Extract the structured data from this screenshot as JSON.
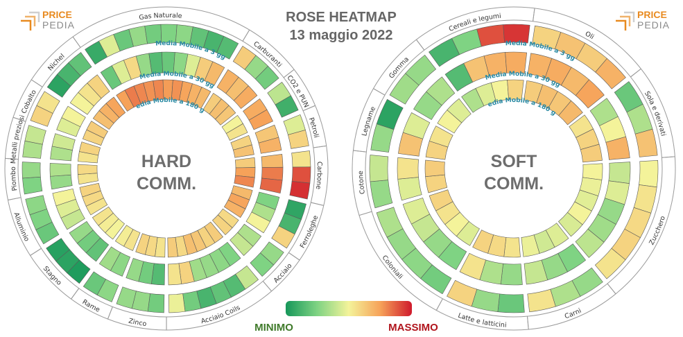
{
  "title_line1": "ROSE HEATMAP",
  "title_line2": "13 maggio 2022",
  "logo": {
    "price": "PRICE",
    "pedia": "PEDIA"
  },
  "legend": {
    "min_label": "MINIMO",
    "max_label": "MASSIMO",
    "colors": [
      "#17975a",
      "#7fd383",
      "#f4f39a",
      "#f6a259",
      "#cf1a2c"
    ]
  },
  "ring_labels": [
    "Media Mobile a 3 gg",
    "Media Mobile a 30 gg",
    "Media Mobile a 180 gg"
  ],
  "chart_data": [
    {
      "type": "heatmap",
      "name": "HARD COMM.",
      "center_line1": "HARD",
      "center_line2": "COMM.",
      "scale": "0 = minimo, 1 = massimo",
      "sectors": [
        {
          "label": "Gas Naturale",
          "v3": [
            0.08,
            0.45,
            0.2,
            0.3,
            0.22,
            0.25,
            0.28,
            0.18,
            0.12,
            0.15
          ],
          "v30": [
            0.2,
            0.45,
            0.58,
            0.3,
            0.15,
            0.2,
            0.28,
            0.45,
            0.62,
            0.68
          ],
          "v180": [
            0.75,
            0.82,
            0.8,
            0.78,
            0.8,
            0.76,
            0.78,
            0.74,
            0.7,
            0.68
          ]
        },
        {
          "label": "Carburanti",
          "v3": [
            0.62,
            0.3,
            0.22
          ],
          "v30": [
            0.7,
            0.66,
            0.72
          ],
          "v180": [
            0.62,
            0.66,
            0.64
          ]
        },
        {
          "label": "CO2 e PUN",
          "v3": [
            0.38,
            0.1
          ],
          "v30": [
            0.72,
            0.75
          ],
          "v180": [
            0.5,
            0.55
          ]
        },
        {
          "label": "Petroli",
          "v3": [
            0.45,
            0.6
          ],
          "v30": [
            0.64,
            0.7
          ],
          "v180": [
            0.6,
            0.65
          ]
        },
        {
          "label": "Carbone",
          "v3": [
            0.55,
            0.9,
            0.96
          ],
          "v30": [
            0.68,
            0.82,
            0.86
          ],
          "v180": [
            0.62,
            0.75,
            0.8
          ]
        },
        {
          "label": "Ferroleghe",
          "v3": [
            0.06,
            0.12,
            0.6
          ],
          "v30": [
            0.25,
            0.35,
            0.5
          ],
          "v180": [
            0.68,
            0.74,
            0.7
          ]
        },
        {
          "label": "Acciaio",
          "v3": [
            0.3,
            0.25
          ],
          "v30": [
            0.35,
            0.4
          ],
          "v180": [
            0.58,
            0.6
          ]
        },
        {
          "label": "Acciaio Coils",
          "v3": [
            0.4,
            0.15,
            0.18,
            0.12,
            0.22,
            0.48
          ],
          "v30": [
            0.25,
            0.28,
            0.3,
            0.32,
            0.6,
            0.55
          ],
          "v180": [
            0.62,
            0.6,
            0.64,
            0.66,
            0.58,
            0.62
          ]
        },
        {
          "label": "Zinco",
          "v3": [
            0.22,
            0.3,
            0.3
          ],
          "v30": [
            0.15,
            0.22,
            0.3
          ],
          "v180": [
            0.55,
            0.58,
            0.6
          ]
        },
        {
          "label": "Rame",
          "v3": [
            0.28,
            0.2
          ],
          "v30": [
            0.28,
            0.32
          ],
          "v180": [
            0.55,
            0.52
          ]
        },
        {
          "label": "Stagno",
          "v3": [
            0.02,
            0.05,
            0.04
          ],
          "v30": [
            0.18,
            0.22,
            0.3
          ],
          "v180": [
            0.5,
            0.52,
            0.55
          ]
        },
        {
          "label": "Alluminio",
          "v3": [
            0.2,
            0.25,
            0.28
          ],
          "v30": [
            0.4,
            0.45,
            0.5
          ],
          "v180": [
            0.55,
            0.58,
            0.6
          ]
        },
        {
          "label": "Piombo",
          "v3": [
            0.25,
            0.3
          ],
          "v30": [
            0.3,
            0.35
          ],
          "v180": [
            0.55,
            0.58
          ]
        },
        {
          "label": "Metalli preziosi",
          "v3": [
            0.35,
            0.4
          ],
          "v30": [
            0.35,
            0.42
          ],
          "v180": [
            0.55,
            0.6
          ]
        },
        {
          "label": "Cobalto",
          "v3": [
            0.6,
            0.55
          ],
          "v30": [
            0.45,
            0.5
          ],
          "v180": [
            0.6,
            0.62
          ]
        },
        {
          "label": "Nichel",
          "v3": [
            0.05,
            0.12,
            0.18
          ],
          "v30": [
            0.5,
            0.55,
            0.6
          ],
          "v180": [
            0.66,
            0.7,
            0.74
          ]
        }
      ]
    },
    {
      "type": "heatmap",
      "name": "SOFT COMM.",
      "center_line1": "SOFT",
      "center_line2": "COMM.",
      "scale": "0 = minimo, 1 = massimo",
      "sectors": [
        {
          "label": "Cereali e legumi",
          "v3": [
            0.12,
            0.25,
            0.9,
            0.95
          ],
          "v30": [
            0.15,
            0.65,
            0.7,
            0.72
          ],
          "v180": [
            0.35,
            0.45,
            0.5,
            0.6
          ]
        },
        {
          "label": "Oli",
          "v3": [
            0.6,
            0.65,
            0.62,
            0.7
          ],
          "v30": [
            0.7,
            0.72,
            0.68,
            0.74
          ],
          "v180": [
            0.62,
            0.66,
            0.64,
            0.68
          ]
        },
        {
          "label": "Sola e derivati",
          "v3": [
            0.2,
            0.35,
            0.65
          ],
          "v30": [
            0.35,
            0.5,
            0.7
          ],
          "v180": [
            0.55,
            0.6,
            0.62
          ]
        },
        {
          "label": "Zucchero",
          "v3": [
            0.5,
            0.55,
            0.58,
            0.6,
            0.55
          ],
          "v30": [
            0.4,
            0.45,
            0.3,
            0.32,
            0.38
          ],
          "v180": [
            0.5,
            0.48,
            0.46,
            0.5,
            0.44
          ]
        },
        {
          "label": "Carni",
          "v3": [
            0.3,
            0.35,
            0.55
          ],
          "v30": [
            0.25,
            0.3,
            0.4
          ],
          "v180": [
            0.45,
            0.42,
            0.48
          ]
        },
        {
          "label": "Latte e latticini",
          "v3": [
            0.2,
            0.3,
            0.6
          ],
          "v30": [
            0.3,
            0.35,
            0.55
          ],
          "v180": [
            0.55,
            0.58,
            0.6
          ]
        },
        {
          "label": "Coloniali",
          "v3": [
            0.22,
            0.28,
            0.3,
            0.35
          ],
          "v30": [
            0.25,
            0.3,
            0.4,
            0.45
          ],
          "v180": [
            0.45,
            0.5,
            0.55,
            0.6
          ]
        },
        {
          "label": "Cotone",
          "v3": [
            0.3,
            0.4
          ],
          "v30": [
            0.45,
            0.55
          ],
          "v180": [
            0.6,
            0.62
          ]
        },
        {
          "label": "Legname",
          "v3": [
            0.3,
            0.05
          ],
          "v30": [
            0.65,
            0.45
          ],
          "v180": [
            0.6,
            0.55
          ]
        },
        {
          "label": "Gomma",
          "v3": [
            0.32,
            0.3
          ],
          "v30": [
            0.3,
            0.35
          ],
          "v180": [
            0.5,
            0.45
          ]
        }
      ]
    }
  ]
}
